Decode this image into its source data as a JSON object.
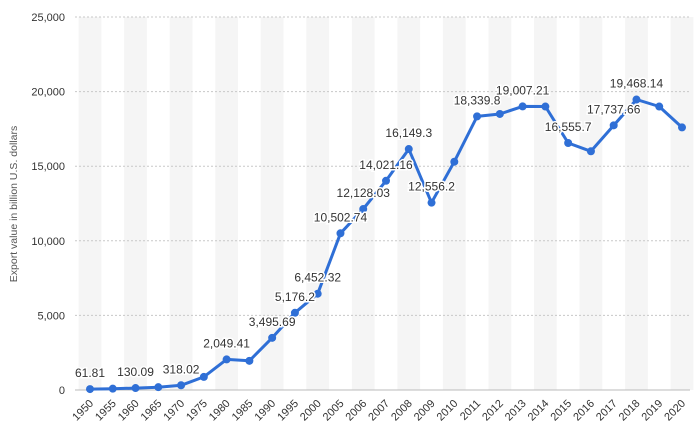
{
  "chart_data": {
    "type": "line",
    "ylabel": "Export value in billion U.S. dollars",
    "xlabel": "",
    "ylim": [
      0,
      25000
    ],
    "yticks": [
      0,
      5000,
      10000,
      15000,
      20000,
      25000
    ],
    "ytick_labels": [
      "0",
      "5,000",
      "10,000",
      "15,000",
      "20,000",
      "25,000"
    ],
    "grid": "horizontal dotted",
    "categories": [
      "1950",
      "1955",
      "1960",
      "1965",
      "1970",
      "1975",
      "1980",
      "1985",
      "1990",
      "1995",
      "2000",
      "2005",
      "2006",
      "2007",
      "2008",
      "2009",
      "2010",
      "2011",
      "2012",
      "2013",
      "2014",
      "2015",
      "2016",
      "2017",
      "2018",
      "2019",
      "2020"
    ],
    "series": [
      {
        "values": [
          61.81,
          90,
          130.09,
          190,
          318.02,
          877,
          2049.41,
          1954,
          3495.69,
          5176.2,
          6452.32,
          10502.74,
          12128.03,
          14021.16,
          16149.3,
          12556.2,
          15300,
          18339.8,
          18500,
          19007.21,
          19000,
          16555.7,
          16000,
          17737.66,
          19468.14,
          19000,
          17600
        ],
        "labels": [
          "61.81",
          "",
          "130.09",
          "",
          "318.02",
          "",
          "2,049.41",
          "",
          "3,495.69",
          "5,176.2",
          "6,452.32",
          "10,502.74",
          "12,128.03",
          "14,021.16",
          "16,149.3",
          "12,556.2",
          "",
          "18,339.8",
          "",
          "19,007.21",
          "",
          "16,555.7",
          "",
          "17,737.66",
          "19,468.14",
          "",
          ""
        ],
        "color": "#2f6fd6"
      }
    ]
  }
}
